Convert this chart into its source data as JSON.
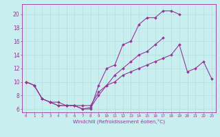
{
  "title": "",
  "xlabel": "Windchill (Refroidissement éolien,°C)",
  "ylabel": "",
  "background_color": "#c8eef0",
  "line_color": "#993399",
  "grid_color": "#b8e0e0",
  "xlim": [
    -0.5,
    23.5
  ],
  "ylim": [
    5.5,
    21.5
  ],
  "xticks": [
    0,
    1,
    2,
    3,
    4,
    5,
    6,
    7,
    8,
    9,
    10,
    11,
    12,
    13,
    14,
    15,
    16,
    17,
    18,
    19,
    20,
    21,
    22,
    23
  ],
  "yticks": [
    6,
    8,
    10,
    12,
    14,
    16,
    18,
    20
  ],
  "line1_x": [
    0,
    1,
    2,
    3,
    4,
    5,
    6,
    7,
    8,
    9,
    10,
    11,
    12,
    13,
    14,
    15,
    16,
    17,
    18,
    19
  ],
  "line1_y": [
    10.0,
    9.5,
    7.5,
    7.0,
    6.5,
    6.5,
    6.5,
    6.0,
    6.0,
    9.5,
    12.0,
    12.5,
    15.5,
    16.0,
    18.5,
    19.5,
    19.5,
    20.5,
    20.5,
    20.0
  ],
  "line2_x": [
    0,
    1,
    2,
    3,
    4,
    5,
    6,
    7,
    8,
    9,
    10,
    11,
    12,
    13,
    14,
    15,
    16,
    17
  ],
  "line2_y": [
    10.0,
    9.5,
    7.5,
    7.0,
    6.5,
    6.5,
    6.5,
    6.0,
    6.2,
    8.0,
    9.5,
    11.0,
    12.0,
    13.0,
    14.0,
    14.5,
    15.5,
    16.5
  ],
  "line3_x": [
    0,
    1,
    2,
    3,
    4,
    5,
    6,
    7,
    8,
    9,
    10,
    11,
    12,
    13,
    14,
    15,
    16,
    17,
    18,
    19,
    20,
    21,
    22,
    23
  ],
  "line3_y": [
    10.0,
    9.5,
    7.5,
    7.0,
    7.0,
    6.5,
    6.5,
    6.5,
    6.5,
    8.5,
    9.5,
    10.0,
    11.0,
    11.5,
    12.0,
    12.5,
    13.0,
    13.5,
    14.0,
    15.5,
    11.5,
    12.0,
    13.0,
    10.5
  ]
}
